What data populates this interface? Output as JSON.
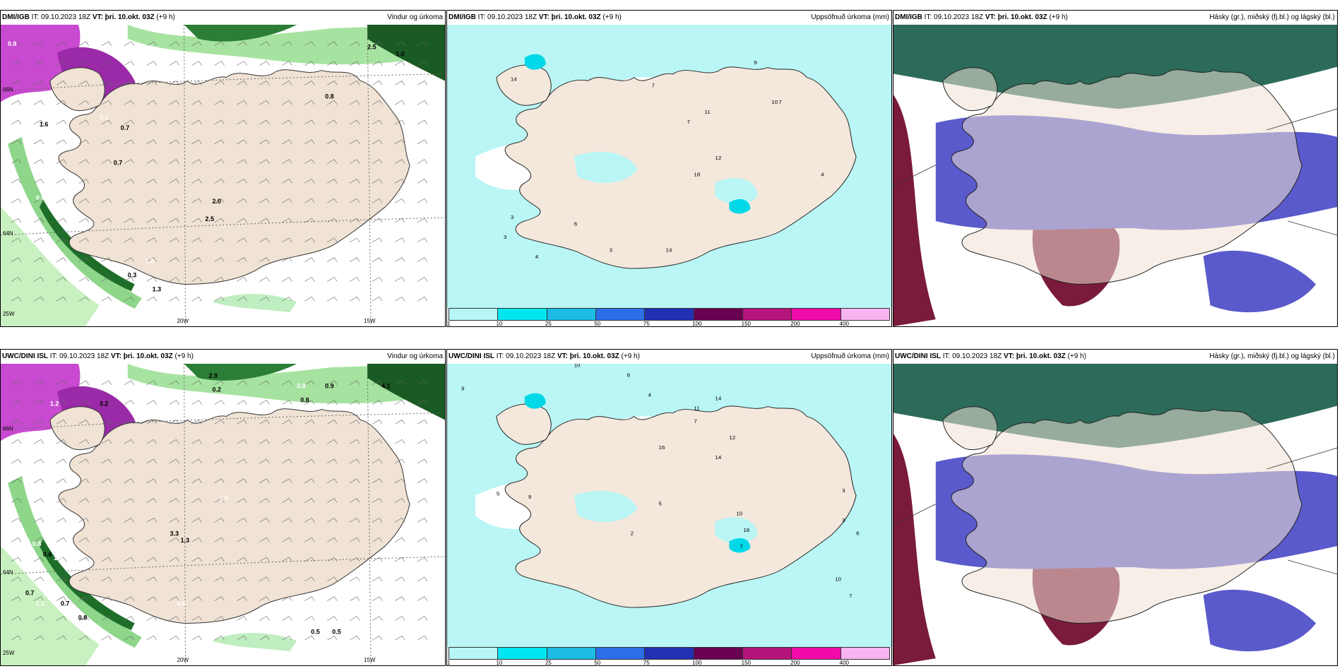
{
  "panels": [
    {
      "model": "DMI/IGB",
      "it": "IT: 09.10.2023 18Z",
      "vt_label": "VT:",
      "vt": "þri. 10.okt. 03Z",
      "offset": "(+9 h)",
      "title": "Vindur og úrkoma",
      "type": "wind",
      "labels": {
        "lat66": "66N",
        "lat64": "64N",
        "lon25": "25W",
        "lon20": "20W",
        "lon15": "15W"
      },
      "values": [
        "0.8",
        "1.0",
        "2.5",
        "3.1",
        "0.7",
        "1.6",
        "0.6",
        "2.5",
        "2.0",
        "1.0",
        "0.3",
        "1.3",
        "0.6",
        "0.7",
        "0.8"
      ]
    },
    {
      "model": "DMI/IGB",
      "it": "IT: 09.10.2023 18Z",
      "vt_label": "VT:",
      "vt": "þri. 10.okt. 03Z",
      "offset": "(+9 h)",
      "title": "Uppsöfnuð úrkoma (mm)",
      "type": "accum",
      "values": [
        "14",
        "7",
        "9",
        "7",
        "10",
        "11",
        "7",
        "18",
        "4",
        "12",
        "3",
        "6",
        "3",
        "4",
        "3",
        "14"
      ]
    },
    {
      "model": "DMI/IGB",
      "it": "IT: 09.10.2023 18Z",
      "vt_label": "VT:",
      "vt": "þri. 10.okt. 03Z",
      "offset": "(+9 h)",
      "title": "Hásky (gr.), miðský (fj.bl.) og lágský (bl.)",
      "type": "cloud"
    },
    {
      "model": "UWC/DINI ISL",
      "it": "IT: 09.10.2023 18Z",
      "vt_label": "VT:",
      "vt": "þri. 10.okt. 03Z",
      "offset": "(+9 h)",
      "title": "Vindur og úrkoma",
      "type": "wind",
      "labels": {
        "lat66": "66N",
        "lat64": "64N",
        "lon25": "25W",
        "lon20": "20W",
        "lon15": "15W"
      },
      "values": [
        "1.2",
        "3.2",
        "2.9",
        "0.8",
        "0.9",
        "4.1",
        "0.7",
        "0.2",
        "0.8",
        "1.0",
        "3.3",
        "1.3",
        "0.8",
        "0.6",
        "0.7",
        "1.1",
        "0.7",
        "0.8",
        "0.6",
        "0.5",
        "0.5",
        "1.3"
      ]
    },
    {
      "model": "UWC/DINI ISL",
      "it": "IT: 09.10.2023 18Z",
      "vt_label": "VT:",
      "vt": "þri. 10.okt. 03Z",
      "offset": "(+9 h)",
      "title": "Uppsöfnuð úrkoma (mm)",
      "type": "accum",
      "values": [
        "10",
        "8",
        "9",
        "4",
        "14",
        "11",
        "7",
        "12",
        "16",
        "14",
        "5",
        "9",
        "10",
        "3",
        "7",
        "2",
        "18",
        "5",
        "10",
        "3",
        "7",
        "6"
      ]
    },
    {
      "model": "UWC/DINI ISL",
      "it": "IT: 09.10.2023 18Z",
      "vt_label": "VT:",
      "vt": "þri. 10.okt. 03Z",
      "offset": "(+9 h)",
      "title": "Hásky (gr.), miðský (fj.bl.) og lágský (bl.)",
      "type": "cloud"
    }
  ],
  "legend": {
    "colors": [
      "#b7f6f6",
      "#00e6f0",
      "#1cbce6",
      "#2b6ee8",
      "#2230b4",
      "#6a0050",
      "#b4147c",
      "#f00aa8",
      "#f8b4f0"
    ],
    "ticks": [
      "1",
      "10",
      "25",
      "50",
      "75",
      "100",
      "150",
      "200",
      "400"
    ]
  }
}
